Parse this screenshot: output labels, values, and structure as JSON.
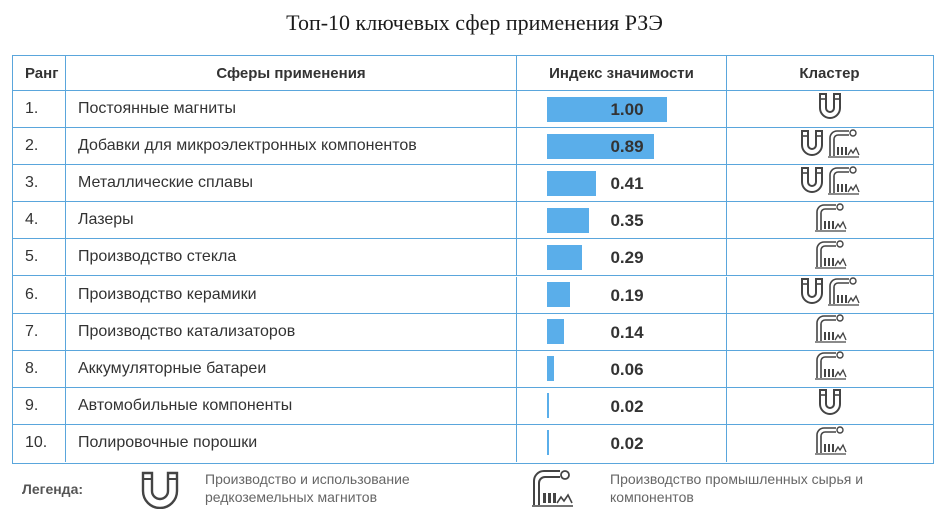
{
  "title": "Топ-10 ключевых сфер применения РЗЭ",
  "headers": {
    "rank": "Ранг",
    "sphere": "Сферы применения",
    "index": "Индекс значимости",
    "cluster": "Кластер"
  },
  "rows": [
    {
      "rank": "1.",
      "sphere": "Постоянные магниты",
      "value": "1.00",
      "clusters": [
        "magnet-icon"
      ]
    },
    {
      "rank": "2.",
      "sphere": "Добавки для микроэлектронных компонентов",
      "value": "0.89",
      "clusters": [
        "magnet-icon",
        "factory-icon"
      ]
    },
    {
      "rank": "3.",
      "sphere": "Металлические сплавы",
      "value": "0.41",
      "clusters": [
        "magnet-icon",
        "factory-icon"
      ]
    },
    {
      "rank": "4.",
      "sphere": "Лазеры",
      "value": "0.35",
      "clusters": [
        "factory-icon"
      ]
    },
    {
      "rank": "5.",
      "sphere": "Производство стекла",
      "value": "0.29",
      "clusters": [
        "factory-icon"
      ]
    },
    {
      "rank": "6.",
      "sphere": "Производство керамики",
      "value": "0.19",
      "clusters": [
        "magnet-icon",
        "factory-icon"
      ]
    },
    {
      "rank": "7.",
      "sphere": "Производство катализаторов",
      "value": "0.14",
      "clusters": [
        "factory-icon"
      ]
    },
    {
      "rank": "8.",
      "sphere": "Аккумуляторные батареи",
      "value": "0.06",
      "clusters": [
        "factory-icon"
      ]
    },
    {
      "rank": "9.",
      "sphere": "Автомобильные компоненты",
      "value": "0.02",
      "clusters": [
        "magnet-icon"
      ]
    },
    {
      "rank": "10.",
      "sphere": "Полировочные порошки",
      "value": "0.02",
      "clusters": [
        "factory-icon"
      ]
    }
  ],
  "legend": {
    "label": "Легенда:",
    "magnet_text": "Производство и использование редкоземельных магнитов",
    "factory_text": "Производство промышленных сырья и компонентов"
  },
  "colors": {
    "bar": "#5aaeea",
    "border": "#5aa6dc",
    "icon": "#444444"
  },
  "chart_data": {
    "type": "bar",
    "title": "Топ-10 ключевых сфер применения РЗЭ",
    "categories": [
      "Постоянные магниты",
      "Добавки для микроэлектронных компонентов",
      "Металлические сплавы",
      "Лазеры",
      "Производство стекла",
      "Производство керамики",
      "Производство катализаторов",
      "Аккумуляторные батареи",
      "Автомобильные компоненты",
      "Полировочные порошки"
    ],
    "values": [
      1.0,
      0.89,
      0.41,
      0.35,
      0.29,
      0.19,
      0.14,
      0.06,
      0.02,
      0.02
    ],
    "ylabel": "Индекс значимости",
    "ylim": [
      0,
      1
    ]
  }
}
